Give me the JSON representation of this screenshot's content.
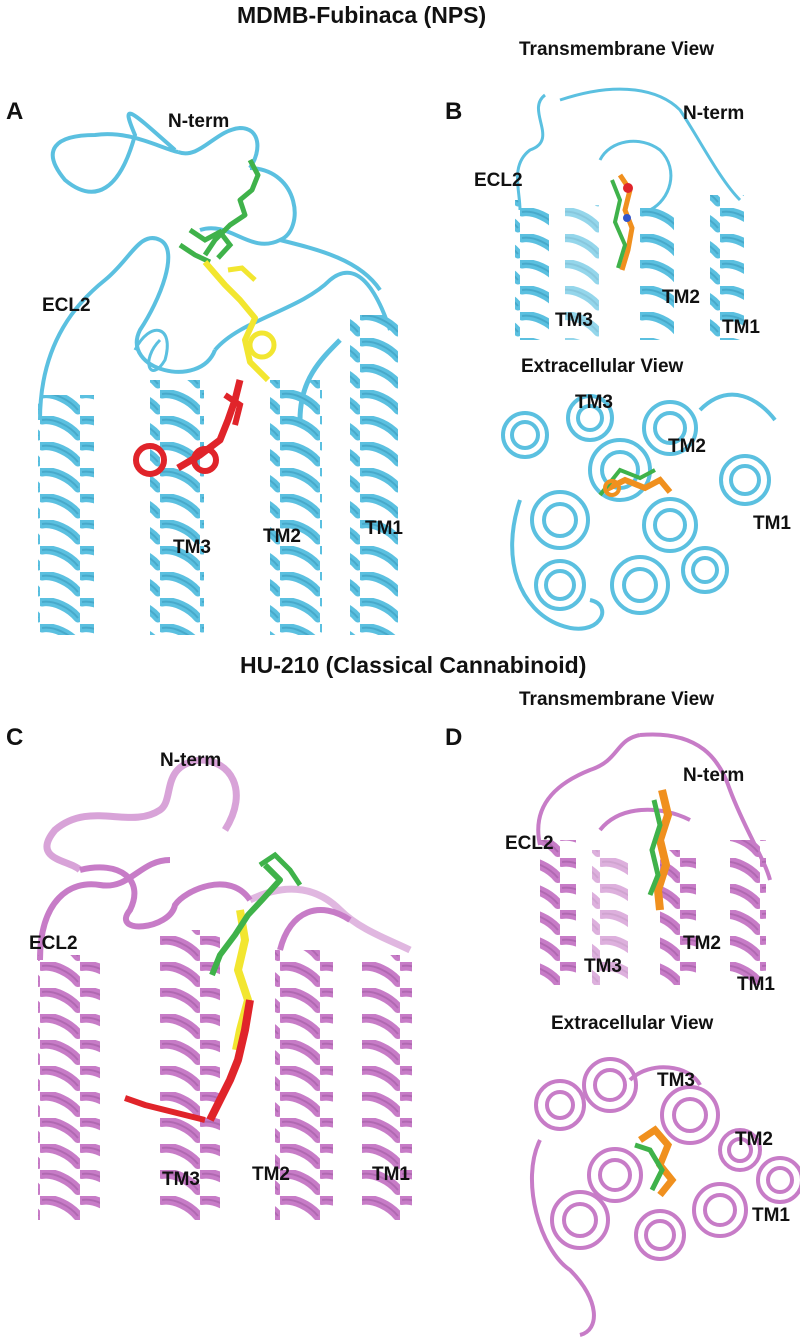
{
  "colors": {
    "cb1_fubinaca": "#5bc0e0",
    "cb1_hu210": "#c77cc7",
    "ligand_green": "#3fb24a",
    "ligand_yellow": "#f2e630",
    "ligand_red": "#e0242a",
    "ligand_orange": "#f0901e"
  },
  "top": {
    "title": "MDMB-Fubinaca (NPS)",
    "panel_a": {
      "letter": "A",
      "labels": {
        "nterm": "N-term",
        "ecl2": "ECL2",
        "tm3": "TM3",
        "tm2": "TM2",
        "tm1": "TM1"
      }
    },
    "panel_b": {
      "letter": "B",
      "tm_view": {
        "title": "Transmembrane View",
        "labels": {
          "nterm": "N-term",
          "ecl2": "ECL2",
          "tm3": "TM3",
          "tm2": "TM2",
          "tm1": "TM1"
        }
      },
      "ec_view": {
        "title": "Extracellular View",
        "labels": {
          "tm3": "TM3",
          "tm2": "TM2",
          "tm1": "TM1"
        }
      }
    }
  },
  "bottom": {
    "title": "HU-210 (Classical Cannabinoid)",
    "panel_c": {
      "letter": "C",
      "labels": {
        "nterm": "N-term",
        "ecl2": "ECL2",
        "tm3": "TM3",
        "tm2": "TM2",
        "tm1": "TM1"
      }
    },
    "panel_d": {
      "letter": "D",
      "tm_view": {
        "title": "Transmembrane View",
        "labels": {
          "nterm": "N-term",
          "ecl2": "ECL2",
          "tm3": "TM3",
          "tm2": "TM2",
          "tm1": "TM1"
        }
      },
      "ec_view": {
        "title": "Extracellular View",
        "labels": {
          "tm3": "TM3",
          "tm2": "TM2",
          "tm1": "TM1"
        }
      }
    }
  }
}
